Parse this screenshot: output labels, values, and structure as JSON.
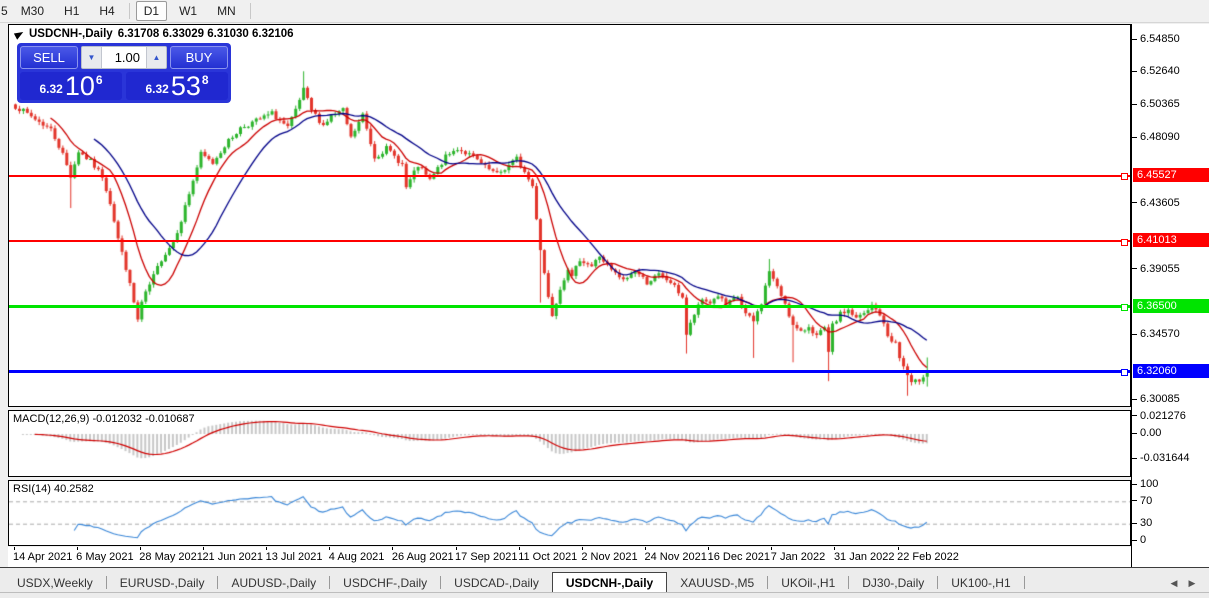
{
  "toolbar": {
    "partial_left": "5",
    "timeframes": [
      "M30",
      "H1",
      "H4",
      "D1",
      "W1",
      "MN"
    ],
    "active_timeframe": "D1"
  },
  "chart": {
    "title": {
      "symbol": "USDCNH-,Daily",
      "ohlc_text": "6.31708 6.33029 6.31030 6.32106"
    },
    "trade_panel": {
      "sell_label": "SELL",
      "buy_label": "BUY",
      "lot_value": "1.00",
      "sell_price_prefix": "6.32",
      "sell_price_main": "10",
      "sell_price_sup": "6",
      "buy_price_prefix": "6.32",
      "buy_price_main": "53",
      "buy_price_sup": "8"
    },
    "price_axis": {
      "ticks": [
        {
          "label": "6.54850",
          "price": 6.5485
        },
        {
          "label": "6.52640",
          "price": 6.5264
        },
        {
          "label": "6.50365",
          "price": 6.50365
        },
        {
          "label": "6.48090",
          "price": 6.4809
        },
        {
          "label": "6.43605",
          "price": 6.43605
        },
        {
          "label": "6.39055",
          "price": 6.39055
        },
        {
          "label": "6.34570",
          "price": 6.3457
        },
        {
          "label": "6.30085",
          "price": 6.30085
        }
      ],
      "levels": [
        {
          "label": "6.45527",
          "price": 6.45527,
          "color": "#FF0000",
          "thickness": 2
        },
        {
          "label": "6.41013",
          "price": 6.41013,
          "color": "#FF0000",
          "thickness": 2
        },
        {
          "label": "6.36500",
          "price": 6.365,
          "color": "#00E400",
          "thickness": 3
        },
        {
          "label": "6.32060",
          "price": 6.3206,
          "color": "#0000FF",
          "thickness": 3
        }
      ]
    },
    "date_axis": [
      "14 Apr 2021",
      "6 May 2021",
      "28 May 2021",
      "21 Jun 2021",
      "13 Jul 2021",
      "4 Aug 2021",
      "26 Aug 2021",
      "17 Sep 2021",
      "11 Oct 2021",
      "2 Nov 2021",
      "24 Nov 2021",
      "16 Dec 2021",
      "7 Jan 2022",
      "31 Jan 2022",
      "22 Feb 2022"
    ]
  },
  "macd_panel": {
    "label": "MACD(12,26,9) -0.012032 -0.010687",
    "axis": [
      {
        "label": "0.021276",
        "value": 0.021276
      },
      {
        "label": "0.00",
        "value": 0.0
      },
      {
        "label": "-0.031644",
        "value": -0.031644
      }
    ]
  },
  "rsi_panel": {
    "label": "RSI(14) 40.2582",
    "axis": [
      {
        "label": "100",
        "value": 100
      },
      {
        "label": "70",
        "value": 70
      },
      {
        "label": "30",
        "value": 30
      },
      {
        "label": "0",
        "value": 0
      }
    ]
  },
  "tabs": {
    "items": [
      {
        "label": "USDX,Weekly",
        "active": false
      },
      {
        "label": "EURUSD-,Daily",
        "active": false
      },
      {
        "label": "AUDUSD-,Daily",
        "active": false
      },
      {
        "label": "USDCHF-,Daily",
        "active": false
      },
      {
        "label": "USDCAD-,Daily",
        "active": false
      },
      {
        "label": "USDCNH-,Daily",
        "active": true
      },
      {
        "label": "XAUUSD-,M5",
        "active": false
      },
      {
        "label": "UKOil-,H1",
        "active": false
      },
      {
        "label": "DJ30-,Daily",
        "active": false
      },
      {
        "label": "UK100-,H1",
        "active": false
      }
    ]
  },
  "chart_data": {
    "type": "candlestick",
    "symbol": "USDCNH",
    "timeframe": "Daily",
    "bars": 232,
    "visible_range": {
      "start": "14 Apr 2021",
      "end": "25 Feb 2022"
    },
    "ylim": [
      6.2955,
      6.557
    ],
    "ohlc_current": {
      "open": 6.31708,
      "high": 6.33029,
      "low": 6.3103,
      "close": 6.32106
    },
    "levels": [
      6.45527,
      6.41013,
      6.365,
      6.3206
    ],
    "price_path": [
      [
        0,
        6.503
      ],
      [
        4,
        6.496
      ],
      [
        9,
        6.487
      ],
      [
        12,
        6.47
      ],
      [
        14,
        6.455
      ],
      [
        16,
        6.472
      ],
      [
        19,
        6.465
      ],
      [
        22,
        6.455
      ],
      [
        24,
        6.437
      ],
      [
        26,
        6.412
      ],
      [
        28,
        6.392
      ],
      [
        31,
        6.356
      ],
      [
        32,
        6.368
      ],
      [
        35,
        6.386
      ],
      [
        37,
        6.398
      ],
      [
        40,
        6.41
      ],
      [
        42,
        6.425
      ],
      [
        45,
        6.452
      ],
      [
        47,
        6.47
      ],
      [
        50,
        6.464
      ],
      [
        53,
        6.476
      ],
      [
        57,
        6.488
      ],
      [
        61,
        6.493
      ],
      [
        65,
        6.498
      ],
      [
        69,
        6.488
      ],
      [
        71,
        6.5
      ],
      [
        73,
        6.514
      ],
      [
        75,
        6.5
      ],
      [
        78,
        6.49
      ],
      [
        80,
        6.496
      ],
      [
        83,
        6.5
      ],
      [
        85,
        6.481
      ],
      [
        88,
        6.497
      ],
      [
        91,
        6.468
      ],
      [
        94,
        6.474
      ],
      [
        98,
        6.463
      ],
      [
        99,
        6.447
      ],
      [
        102,
        6.462
      ],
      [
        105,
        6.452
      ],
      [
        109,
        6.468
      ],
      [
        112,
        6.474
      ],
      [
        116,
        6.468
      ],
      [
        119,
        6.461
      ],
      [
        122,
        6.456
      ],
      [
        124,
        6.46
      ],
      [
        127,
        6.467
      ],
      [
        131,
        6.448
      ],
      [
        133,
        6.405
      ],
      [
        135,
        6.372
      ],
      [
        136,
        6.36
      ],
      [
        138,
        6.378
      ],
      [
        140,
        6.392
      ],
      [
        141,
        6.385
      ],
      [
        143,
        6.398
      ],
      [
        146,
        6.393
      ],
      [
        148,
        6.4
      ],
      [
        151,
        6.39
      ],
      [
        154,
        6.383
      ],
      [
        157,
        6.39
      ],
      [
        160,
        6.382
      ],
      [
        163,
        6.387
      ],
      [
        166,
        6.382
      ],
      [
        169,
        6.372
      ],
      [
        170,
        6.346
      ],
      [
        172,
        6.36
      ],
      [
        174,
        6.37
      ],
      [
        176,
        6.368
      ],
      [
        178,
        6.373
      ],
      [
        180,
        6.366
      ],
      [
        183,
        6.372
      ],
      [
        185,
        6.36
      ],
      [
        187,
        6.355
      ],
      [
        189,
        6.368
      ],
      [
        191,
        6.39
      ],
      [
        193,
        6.378
      ],
      [
        195,
        6.368
      ],
      [
        197,
        6.352
      ],
      [
        199,
        6.347
      ],
      [
        201,
        6.352
      ],
      [
        203,
        6.345
      ],
      [
        205,
        6.35
      ],
      [
        206,
        6.333
      ],
      [
        207,
        6.352
      ],
      [
        209,
        6.36
      ],
      [
        211,
        6.363
      ],
      [
        213,
        6.357
      ],
      [
        216,
        6.362
      ],
      [
        217,
        6.366
      ],
      [
        219,
        6.36
      ],
      [
        221,
        6.345
      ],
      [
        223,
        6.34
      ],
      [
        224,
        6.33
      ],
      [
        226,
        6.318
      ],
      [
        227,
        6.312
      ],
      [
        229,
        6.315
      ],
      [
        231,
        6.32106
      ]
    ],
    "wick_overrides": [
      {
        "i": 14,
        "low": 6.433
      },
      {
        "i": 73,
        "high": 6.527
      },
      {
        "i": 133,
        "low": 6.368
      },
      {
        "i": 170,
        "low": 6.333
      },
      {
        "i": 187,
        "low": 6.33
      },
      {
        "i": 191,
        "high": 6.398
      },
      {
        "i": 197,
        "low": 6.327
      },
      {
        "i": 206,
        "low": 6.314
      },
      {
        "i": 226,
        "low": 6.304
      }
    ],
    "indicators": {
      "ma_fast": {
        "type": "SMA",
        "period": 10,
        "color": "#CC0000"
      },
      "ma_slow": {
        "type": "SMA",
        "period": 21,
        "color": "#000088"
      },
      "macd": {
        "fast": 12,
        "slow": 26,
        "signal": 9,
        "macd_value": -0.012032,
        "signal_value": -0.010687,
        "axis_range": [
          -0.031644,
          0.021276
        ],
        "hist_color": "#C8C8C8",
        "signal_color": "#D00000"
      },
      "rsi": {
        "period": 14,
        "value": 40.2582,
        "guides": [
          30,
          70
        ],
        "line_color": "#3A87D8"
      }
    },
    "colors": {
      "up": "#2DB52D",
      "down": "#E3352B",
      "background": "#FFFFFF"
    }
  }
}
